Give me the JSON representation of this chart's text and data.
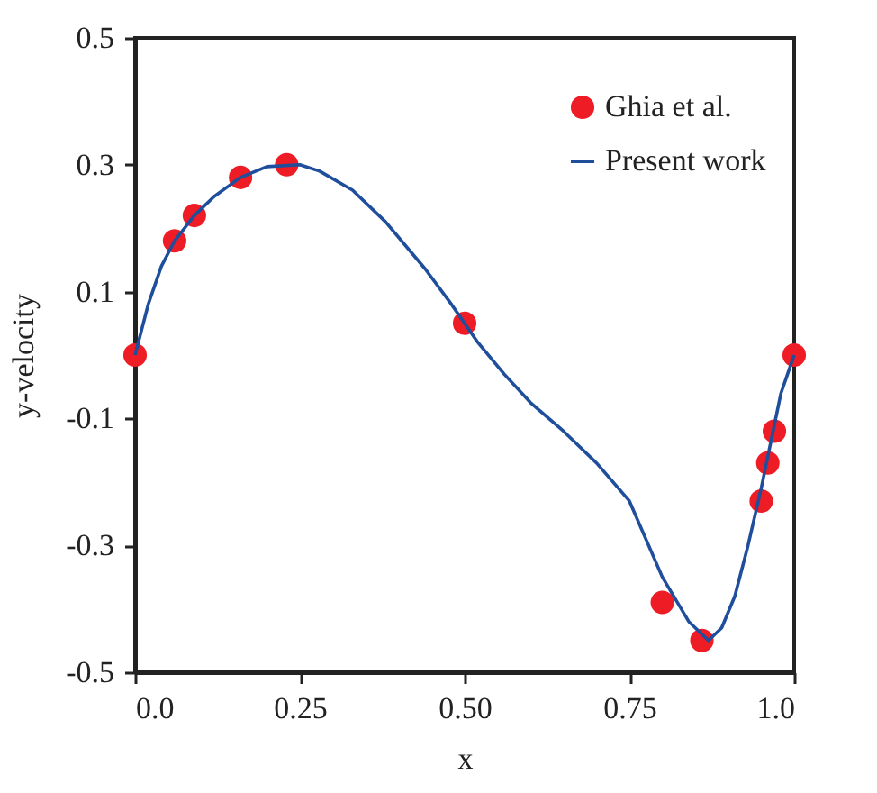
{
  "chart_data": {
    "type": "scatter",
    "xlabel": "x",
    "ylabel": "y-velocity",
    "xlim": [
      0,
      1
    ],
    "ylim": [
      -0.5,
      0.5
    ],
    "xticks": [
      {
        "value": 0,
        "label": "0.0"
      },
      0.25,
      {
        "value": 0.5,
        "label": "0.50"
      },
      0.75,
      {
        "value": 1,
        "label": "1.0"
      }
    ],
    "yticks": [
      -0.5,
      -0.3,
      -0.1,
      0.1,
      0.3,
      0.5
    ],
    "grid": false,
    "legend": "top right",
    "series": [
      {
        "name": "Ghia et al.",
        "marker": "circle",
        "color": "#ee1c25",
        "x": [
          0,
          0.06,
          0.09,
          0.16,
          0.23,
          0.5,
          0.8,
          0.86,
          0.95,
          0.96,
          0.97,
          1.0
        ],
        "values": [
          0,
          0.18,
          0.22,
          0.28,
          0.3,
          0.05,
          -0.39,
          -0.45,
          -0.23,
          -0.17,
          -0.12,
          0
        ]
      },
      {
        "name": "Present work",
        "type": "line",
        "line_style": "solid",
        "color": "#1f4e9c",
        "x": [
          0,
          0.01,
          0.02,
          0.04,
          0.06,
          0.09,
          0.12,
          0.16,
          0.2,
          0.25,
          0.28,
          0.33,
          0.38,
          0.44,
          0.48,
          0.52,
          0.56,
          0.6,
          0.65,
          0.7,
          0.75,
          0.8,
          0.84,
          0.87,
          0.89,
          0.91,
          0.93,
          0.95,
          0.97,
          0.98,
          0.99,
          1.0
        ],
        "values": [
          0,
          0.04,
          0.08,
          0.14,
          0.18,
          0.22,
          0.25,
          0.28,
          0.297,
          0.3,
          0.29,
          0.26,
          0.21,
          0.136,
          0.08,
          0.02,
          -0.03,
          -0.075,
          -0.12,
          -0.17,
          -0.23,
          -0.35,
          -0.42,
          -0.45,
          -0.43,
          -0.38,
          -0.3,
          -0.21,
          -0.11,
          -0.06,
          -0.03,
          0
        ]
      }
    ]
  }
}
